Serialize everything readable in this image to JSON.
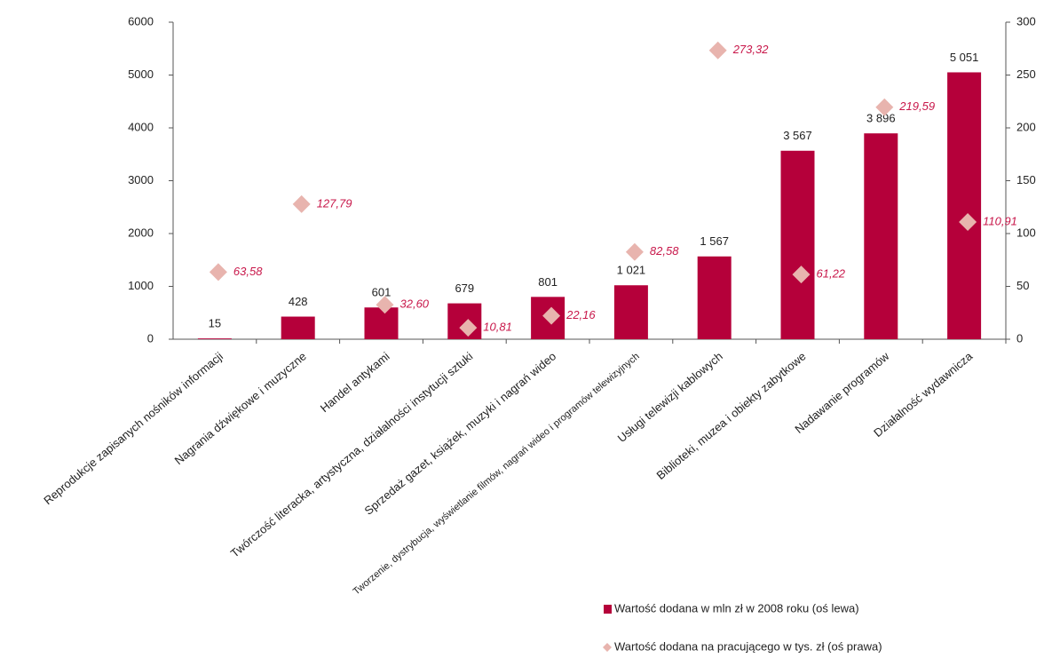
{
  "chart_data": {
    "type": "bar",
    "categories": [
      "Reprodukcje zapisanych nośników informacji",
      "Nagrania dźwiękowe i muzyczne",
      "Handel antykami",
      "Twórczość literacka, artystyczna, działalności instytucji sztuki",
      "Sprzedaż gazet, książek, muzyki i nagrań wideo",
      "Tworzenie, dystrybucja, wyświetlanie filmów, nagrań wideo i programów telewizyjnych",
      "Usługi telewizji kablowych",
      "Biblioteki, muzea i obiekty zabytkowe",
      "Nadawanie programów",
      "Działalność wydawnicza"
    ],
    "series": [
      {
        "name": "Wartość dodana w mln zł w 2008 roku (oś lewa)",
        "type": "bar",
        "color": "#b5003a",
        "values": [
          15,
          428,
          601,
          679,
          801,
          1021,
          1567,
          3567,
          3896,
          5051
        ],
        "value_labels": [
          "15",
          "428",
          "601",
          "679",
          "801",
          "1 021",
          "1 567",
          "3 567",
          "3 896",
          "5 051"
        ]
      },
      {
        "name": "Wartość dodana na pracującego w tys. zł (oś prawa)",
        "type": "scatter",
        "axis": "y2",
        "color": "#e8b4ae",
        "values": [
          63.58,
          127.79,
          32.6,
          10.81,
          22.16,
          82.58,
          273.32,
          61.22,
          219.59,
          110.91
        ],
        "value_labels": [
          "63,58",
          "127,79",
          "32,60",
          "10,81",
          "22,16",
          "82,58",
          "273,32",
          "61,22",
          "219,59",
          "110,91"
        ]
      }
    ],
    "ylim": [
      0,
      6000
    ],
    "yticks": [
      0,
      1000,
      2000,
      3000,
      4000,
      5000,
      6000
    ],
    "y2lim": [
      0,
      300
    ],
    "y2ticks": [
      0,
      50,
      100,
      150,
      200,
      250,
      300
    ],
    "grid": false,
    "legend": "bottom right"
  }
}
